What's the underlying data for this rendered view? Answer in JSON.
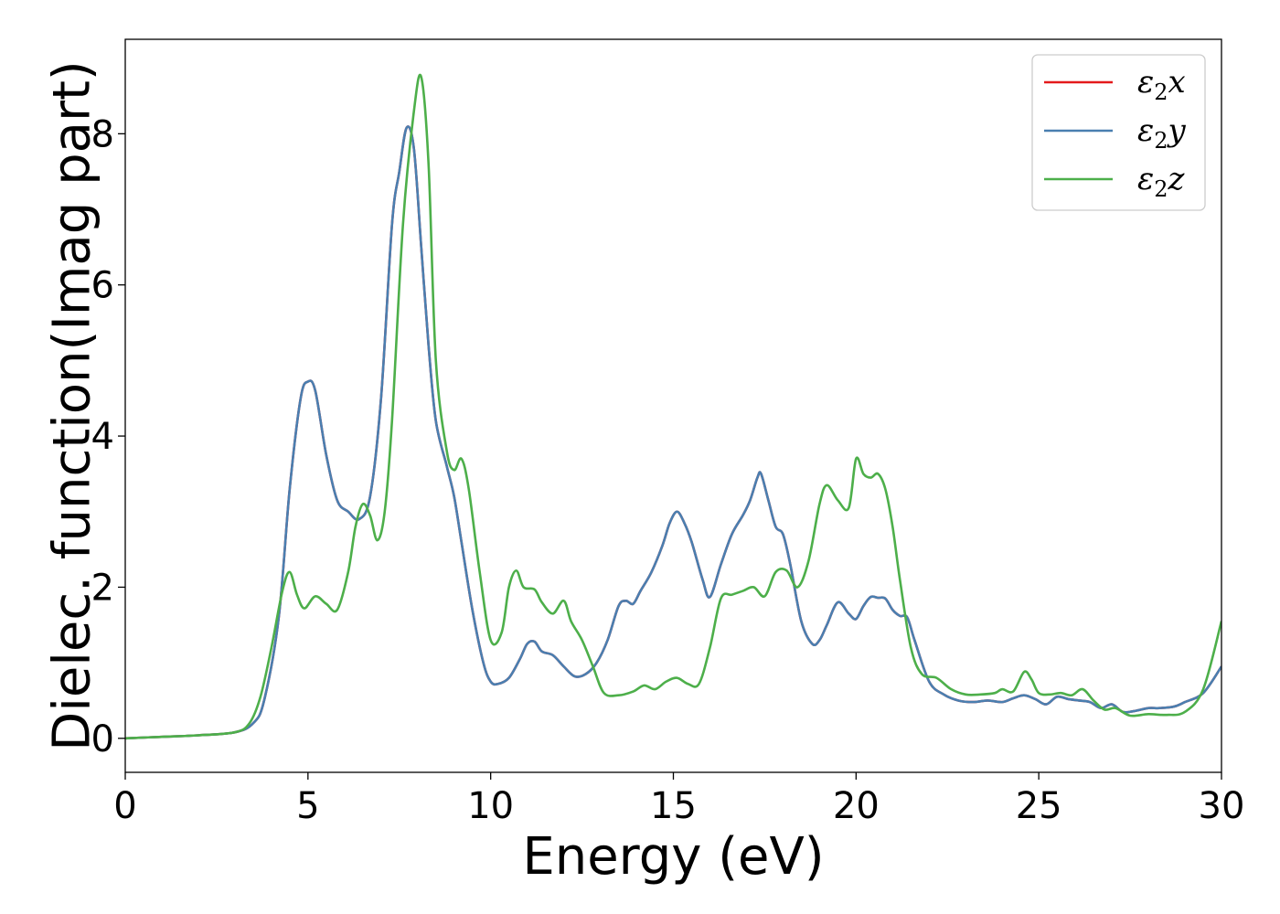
{
  "chart_data": {
    "type": "line",
    "title": "",
    "xlabel": "Energy (eV)",
    "ylabel": "Dielec. function(Imag part)",
    "xlim": [
      0,
      30
    ],
    "ylim": [
      -0.45,
      9.25
    ],
    "xticks": [
      0,
      5,
      10,
      15,
      20,
      25,
      30
    ],
    "yticks": [
      0,
      2,
      4,
      6,
      8
    ],
    "grid": false,
    "legend_position": "top-right",
    "series": [
      {
        "name": "ε₂x",
        "legend_base": "ε",
        "legend_sub": "2",
        "legend_var": "x",
        "color": "#e41a1c",
        "x": [
          0,
          1,
          2,
          3,
          3.5,
          3.8,
          4.2,
          4.5,
          4.8,
          5.0,
          5.2,
          5.5,
          5.8,
          6.1,
          6.4,
          6.7,
          7.0,
          7.3,
          7.5,
          7.7,
          7.9,
          8.1,
          8.3,
          8.5,
          8.8,
          9.0,
          9.2,
          9.5,
          9.8,
          10.0,
          10.2,
          10.5,
          10.8,
          11.0,
          11.2,
          11.4,
          11.7,
          12.0,
          12.3,
          12.6,
          12.9,
          13.2,
          13.5,
          13.7,
          13.9,
          14.1,
          14.4,
          14.7,
          14.9,
          15.1,
          15.3,
          15.5,
          15.8,
          16.0,
          16.3,
          16.6,
          16.9,
          17.1,
          17.3,
          17.4,
          17.6,
          17.8,
          18.0,
          18.2,
          18.5,
          18.8,
          19.0,
          19.2,
          19.5,
          19.8,
          20.0,
          20.2,
          20.4,
          20.6,
          20.8,
          21.0,
          21.2,
          21.4,
          21.6,
          22.0,
          22.4,
          22.8,
          23.2,
          23.6,
          24.0,
          24.3,
          24.6,
          24.9,
          25.2,
          25.5,
          25.8,
          26.1,
          26.4,
          26.7,
          27.0,
          27.3,
          27.6,
          28.0,
          28.3,
          28.7,
          29.0,
          29.5,
          30.0
        ],
        "y": [
          0,
          0.02,
          0.04,
          0.08,
          0.2,
          0.5,
          1.6,
          3.3,
          4.5,
          4.72,
          4.6,
          3.75,
          3.15,
          3.0,
          2.9,
          3.2,
          4.5,
          6.8,
          7.5,
          8.08,
          7.8,
          6.5,
          5.2,
          4.2,
          3.6,
          3.2,
          2.6,
          1.7,
          1.0,
          0.75,
          0.72,
          0.8,
          1.05,
          1.25,
          1.28,
          1.15,
          1.1,
          0.95,
          0.82,
          0.85,
          1.0,
          1.3,
          1.75,
          1.82,
          1.78,
          1.95,
          2.2,
          2.55,
          2.85,
          3.0,
          2.85,
          2.6,
          2.1,
          1.87,
          2.3,
          2.7,
          2.95,
          3.15,
          3.45,
          3.5,
          3.15,
          2.8,
          2.7,
          2.3,
          1.55,
          1.25,
          1.3,
          1.5,
          1.8,
          1.65,
          1.58,
          1.75,
          1.87,
          1.86,
          1.85,
          1.7,
          1.62,
          1.6,
          1.3,
          0.75,
          0.58,
          0.5,
          0.48,
          0.5,
          0.48,
          0.53,
          0.57,
          0.52,
          0.45,
          0.55,
          0.52,
          0.5,
          0.48,
          0.4,
          0.45,
          0.35,
          0.36,
          0.4,
          0.4,
          0.42,
          0.48,
          0.6,
          0.95
        ]
      },
      {
        "name": "ε₂y",
        "legend_base": "ε",
        "legend_sub": "2",
        "legend_var": "y",
        "color": "#4a7fb0",
        "x": [
          0,
          1,
          2,
          3,
          3.5,
          3.8,
          4.2,
          4.5,
          4.8,
          5.0,
          5.2,
          5.5,
          5.8,
          6.1,
          6.4,
          6.7,
          7.0,
          7.3,
          7.5,
          7.7,
          7.9,
          8.1,
          8.3,
          8.5,
          8.8,
          9.0,
          9.2,
          9.5,
          9.8,
          10.0,
          10.2,
          10.5,
          10.8,
          11.0,
          11.2,
          11.4,
          11.7,
          12.0,
          12.3,
          12.6,
          12.9,
          13.2,
          13.5,
          13.7,
          13.9,
          14.1,
          14.4,
          14.7,
          14.9,
          15.1,
          15.3,
          15.5,
          15.8,
          16.0,
          16.3,
          16.6,
          16.9,
          17.1,
          17.3,
          17.4,
          17.6,
          17.8,
          18.0,
          18.2,
          18.5,
          18.8,
          19.0,
          19.2,
          19.5,
          19.8,
          20.0,
          20.2,
          20.4,
          20.6,
          20.8,
          21.0,
          21.2,
          21.4,
          21.6,
          22.0,
          22.4,
          22.8,
          23.2,
          23.6,
          24.0,
          24.3,
          24.6,
          24.9,
          25.2,
          25.5,
          25.8,
          26.1,
          26.4,
          26.7,
          27.0,
          27.3,
          27.6,
          28.0,
          28.3,
          28.7,
          29.0,
          29.5,
          30.0
        ],
        "y": [
          0,
          0.02,
          0.04,
          0.08,
          0.2,
          0.5,
          1.6,
          3.3,
          4.5,
          4.72,
          4.6,
          3.75,
          3.15,
          3.0,
          2.9,
          3.2,
          4.5,
          6.8,
          7.5,
          8.08,
          7.8,
          6.5,
          5.2,
          4.2,
          3.6,
          3.2,
          2.6,
          1.7,
          1.0,
          0.75,
          0.72,
          0.8,
          1.05,
          1.25,
          1.28,
          1.15,
          1.1,
          0.95,
          0.82,
          0.85,
          1.0,
          1.3,
          1.75,
          1.82,
          1.78,
          1.95,
          2.2,
          2.55,
          2.85,
          3.0,
          2.85,
          2.6,
          2.1,
          1.87,
          2.3,
          2.7,
          2.95,
          3.15,
          3.45,
          3.5,
          3.15,
          2.8,
          2.7,
          2.3,
          1.55,
          1.25,
          1.3,
          1.5,
          1.8,
          1.65,
          1.58,
          1.75,
          1.87,
          1.86,
          1.85,
          1.7,
          1.62,
          1.6,
          1.3,
          0.75,
          0.58,
          0.5,
          0.48,
          0.5,
          0.48,
          0.53,
          0.57,
          0.52,
          0.45,
          0.55,
          0.52,
          0.5,
          0.48,
          0.4,
          0.45,
          0.35,
          0.36,
          0.4,
          0.4,
          0.42,
          0.48,
          0.6,
          0.95
        ]
      },
      {
        "name": "ε₂z",
        "legend_base": "ε",
        "legend_sub": "2",
        "legend_var": "z",
        "color": "#4daf4a",
        "x": [
          0,
          1,
          2,
          3,
          3.4,
          3.7,
          4.0,
          4.3,
          4.5,
          4.7,
          4.9,
          5.2,
          5.5,
          5.8,
          6.1,
          6.3,
          6.5,
          6.7,
          6.9,
          7.1,
          7.3,
          7.6,
          7.9,
          8.1,
          8.3,
          8.5,
          8.8,
          9.0,
          9.2,
          9.4,
          9.7,
          10.0,
          10.3,
          10.5,
          10.7,
          10.9,
          11.2,
          11.4,
          11.7,
          12.0,
          12.2,
          12.5,
          12.8,
          13.1,
          13.5,
          13.9,
          14.2,
          14.5,
          14.8,
          15.1,
          15.4,
          15.7,
          16.0,
          16.3,
          16.6,
          16.9,
          17.2,
          17.5,
          17.8,
          18.1,
          18.4,
          18.7,
          19.0,
          19.2,
          19.5,
          19.8,
          20.0,
          20.2,
          20.4,
          20.6,
          20.8,
          21.0,
          21.2,
          21.5,
          21.8,
          22.2,
          22.6,
          23.0,
          23.4,
          23.8,
          24.0,
          24.3,
          24.6,
          24.8,
          25.0,
          25.3,
          25.6,
          25.9,
          26.2,
          26.5,
          26.8,
          27.1,
          27.5,
          28.0,
          28.5,
          29.0,
          29.5,
          30.0
        ],
        "y": [
          0,
          0.02,
          0.04,
          0.08,
          0.2,
          0.55,
          1.2,
          1.95,
          2.2,
          1.9,
          1.72,
          1.88,
          1.78,
          1.7,
          2.2,
          2.8,
          3.1,
          2.95,
          2.62,
          3.0,
          4.2,
          6.8,
          8.3,
          8.75,
          7.6,
          5.0,
          3.8,
          3.55,
          3.7,
          3.3,
          2.2,
          1.3,
          1.4,
          2.0,
          2.22,
          2.0,
          1.97,
          1.8,
          1.65,
          1.82,
          1.55,
          1.3,
          0.95,
          0.6,
          0.57,
          0.62,
          0.7,
          0.65,
          0.75,
          0.8,
          0.72,
          0.72,
          1.2,
          1.85,
          1.9,
          1.95,
          2.0,
          1.88,
          2.2,
          2.22,
          2.0,
          2.35,
          3.1,
          3.35,
          3.15,
          3.05,
          3.7,
          3.5,
          3.45,
          3.5,
          3.3,
          2.8,
          2.1,
          1.2,
          0.85,
          0.8,
          0.65,
          0.58,
          0.58,
          0.6,
          0.65,
          0.62,
          0.88,
          0.78,
          0.6,
          0.58,
          0.6,
          0.57,
          0.65,
          0.5,
          0.38,
          0.4,
          0.3,
          0.32,
          0.31,
          0.35,
          0.65,
          1.55
        ]
      }
    ]
  }
}
